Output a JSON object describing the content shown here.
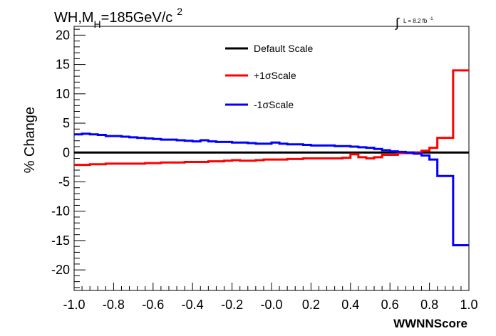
{
  "chart_data": {
    "type": "line",
    "title_parts": {
      "main": "WH,M",
      "sub": "H",
      "rest": "=185GeV/c",
      "sup": "2"
    },
    "lumi_parts": {
      "integral": "∫",
      "text": "L = 8.2 fb",
      "sup": "-1"
    },
    "xlabel": "WWNNScore",
    "ylabel": "% Change",
    "xlim": [
      -1.0,
      1.0
    ],
    "ylim": [
      -23.5,
      21.5
    ],
    "x_ticks": [
      {
        "value": -1.0,
        "label": "-1.0"
      },
      {
        "value": -0.8,
        "label": "-0.8"
      },
      {
        "value": -0.6,
        "label": "-0.6"
      },
      {
        "value": -0.4,
        "label": "-0.4"
      },
      {
        "value": -0.2,
        "label": "-0.2"
      },
      {
        "value": 0.0,
        "label": "-0.0"
      },
      {
        "value": 0.2,
        "label": "0.2"
      },
      {
        "value": 0.4,
        "label": "0.4"
      },
      {
        "value": 0.6,
        "label": "0.6"
      },
      {
        "value": 0.8,
        "label": "0.8"
      },
      {
        "value": 1.0,
        "label": "1.0"
      }
    ],
    "y_ticks": [
      {
        "value": 20,
        "label": "20"
      },
      {
        "value": 15,
        "label": "15"
      },
      {
        "value": 10,
        "label": "10"
      },
      {
        "value": 5,
        "label": "5"
      },
      {
        "value": 0,
        "label": "0"
      },
      {
        "value": -5,
        "label": "-5"
      },
      {
        "value": -10,
        "label": "-10"
      },
      {
        "value": -15,
        "label": "-15"
      },
      {
        "value": -20,
        "label": "-20"
      }
    ],
    "legend_position": "top-center",
    "bins": {
      "edges_start": -1.0,
      "bin_width": 0.04,
      "count": 50
    },
    "series": [
      {
        "name": "Default Scale",
        "color": "#000000",
        "values": [
          0,
          0,
          0,
          0,
          0,
          0,
          0,
          0,
          0,
          0,
          0,
          0,
          0,
          0,
          0,
          0,
          0,
          0,
          0,
          0,
          0,
          0,
          0,
          0,
          0,
          0,
          0,
          0,
          0,
          0,
          0,
          0,
          0,
          0,
          0,
          0,
          0,
          0,
          0,
          0,
          0,
          0,
          0,
          0,
          0,
          0,
          0,
          0,
          0,
          0
        ]
      },
      {
        "name": "+1σScale",
        "color": "#ff0000",
        "values": [
          -2.1,
          -2.1,
          -2.0,
          -2.0,
          -1.9,
          -1.9,
          -1.9,
          -1.9,
          -1.9,
          -1.8,
          -1.8,
          -1.7,
          -1.7,
          -1.7,
          -1.6,
          -1.6,
          -1.6,
          -1.5,
          -1.5,
          -1.4,
          -1.3,
          -1.4,
          -1.4,
          -1.3,
          -1.2,
          -1.2,
          -1.2,
          -1.1,
          -1.1,
          -1.0,
          -1.0,
          -1.0,
          -1.0,
          -1.0,
          -0.9,
          -0.3,
          -0.8,
          -1.0,
          -0.8,
          -0.4,
          -0.4,
          -0.1,
          -0.1,
          0.0,
          0.3,
          0.8,
          2.5,
          2.5,
          14.0,
          14.0
        ]
      },
      {
        "name": "-1σScale",
        "color": "#0000ff",
        "values": [
          3.1,
          3.2,
          3.1,
          3.0,
          2.8,
          2.8,
          2.7,
          2.6,
          2.5,
          2.4,
          2.3,
          2.2,
          2.2,
          2.1,
          2.0,
          1.9,
          2.1,
          1.9,
          1.8,
          1.8,
          1.7,
          1.7,
          1.6,
          1.5,
          1.5,
          1.7,
          1.5,
          1.4,
          1.4,
          1.3,
          1.2,
          1.2,
          1.2,
          1.1,
          1.1,
          1.0,
          0.9,
          0.8,
          0.6,
          0.4,
          0.2,
          0.1,
          0.0,
          -0.2,
          -0.5,
          -1.2,
          -4.0,
          -4.0,
          -15.8,
          -15.8
        ]
      }
    ]
  }
}
